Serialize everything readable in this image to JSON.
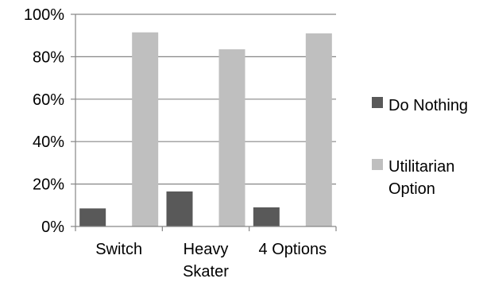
{
  "chart_data": {
    "type": "bar",
    "title": "",
    "xlabel": "",
    "ylabel": "",
    "categories": [
      "Switch",
      "Heavy\nSkater",
      "4 Options"
    ],
    "series": [
      {
        "name": "Do Nothing",
        "values": [
          8.5,
          16.5,
          9
        ],
        "color": "#595959"
      },
      {
        "name": "Utilitarian Option",
        "values": [
          91.5,
          83.5,
          91
        ],
        "color": "#bfbfbf"
      }
    ],
    "ylim": [
      0,
      100
    ],
    "yticks": [
      0,
      20,
      40,
      60,
      80,
      100
    ],
    "ytick_labels": [
      "0%",
      "20%",
      "40%",
      "60%",
      "80%",
      "100%"
    ],
    "grid": true,
    "grid_color": "#868686",
    "axis_color": "#868686",
    "legend_position": "right"
  }
}
